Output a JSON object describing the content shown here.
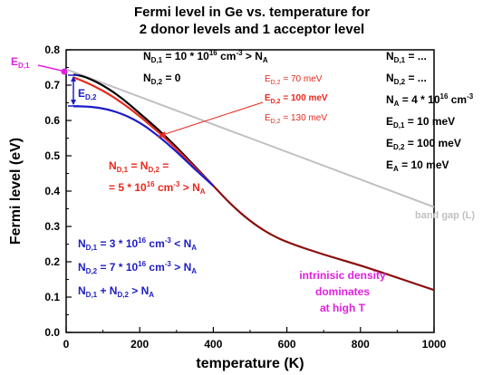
{
  "chart_data": {
    "type": "line",
    "title_line1": "Fermi level in Ge vs. temperature for",
    "title_line2": "2 donor levels and 1 acceptor level",
    "xlabel": "temperature (K)",
    "ylabel": "Fermi level (eV)",
    "xlim": [
      0,
      1000
    ],
    "ylim": [
      0.0,
      0.8
    ],
    "x_ticks": [
      0,
      200,
      400,
      600,
      800,
      1000
    ],
    "y_ticks": [
      0.0,
      0.1,
      0.2,
      0.3,
      0.4,
      0.5,
      0.6,
      0.7,
      0.8
    ],
    "grid": false,
    "colors": {
      "black": "#000000",
      "red": "#e8281c",
      "blue": "#1c1cc8",
      "gray": "#c0c0c0",
      "magenta": "#e020e0",
      "darkred": "#8a0f0f"
    },
    "series": [
      {
        "x": [
          0,
          1000
        ],
        "y": [
          0.745,
          0.355
        ],
        "color": "gray"
      },
      {
        "x": [
          20,
          50,
          100,
          150,
          200,
          250,
          300,
          350,
          400
        ],
        "y": [
          0.73,
          0.725,
          0.7,
          0.665,
          0.62,
          0.575,
          0.525,
          0.47,
          0.415
        ],
        "color": "black"
      },
      {
        "x": [
          20,
          50,
          100,
          150,
          200,
          250,
          300,
          350,
          400
        ],
        "y": [
          0.722,
          0.71,
          0.685,
          0.652,
          0.612,
          0.568,
          0.52,
          0.467,
          0.415
        ],
        "color": "red"
      },
      {
        "x": [
          20,
          50,
          100,
          150,
          200,
          250,
          300,
          350,
          400
        ],
        "y": [
          0.64,
          0.64,
          0.635,
          0.62,
          0.595,
          0.557,
          0.512,
          0.462,
          0.415
        ],
        "color": "blue"
      },
      {
        "x": [
          400,
          450,
          500,
          550,
          600,
          700,
          800,
          900,
          1000
        ],
        "y": [
          0.415,
          0.36,
          0.315,
          0.28,
          0.255,
          0.22,
          0.19,
          0.155,
          0.12
        ],
        "color": "darkred"
      }
    ],
    "texts": {
      "top_nd1": "N",
      "top_nd1_sub": "D,1",
      "top_nd1_val": " = 10 * 10",
      "top_nd1_exp": "16",
      "top_nd1_tail": " cm",
      "top_nd1_exp2": "-3",
      "top_nd1_cmp": " > N",
      "top_nd1_sub2": "A",
      "top_nd2": "N",
      "top_nd2_sub": "D,2",
      "top_nd2_val": " = 0",
      "ed_lbl": "E",
      "ed_sub": "D,1",
      "ed2_lbl": "E",
      "ed2_sub": "D,2",
      "legend_e": "E",
      "legend_sub": "D,2",
      "legend_v1": " =   70 meV",
      "legend_v2": " = 100 meV",
      "legend_v3": " = 130 meV",
      "red_l1a": "N",
      "red_l1_s1": "D,1",
      "red_l1b": " = N",
      "red_l1_s2": "D,2",
      "red_l1c": " =",
      "red_l2a": "= 5 * 10",
      "red_l2_e": "16",
      "red_l2b": " cm",
      "red_l2_e2": "-3",
      "red_l2c": " > N",
      "red_l2_s": "A",
      "blue_l1a": "N",
      "blue_l1_s": "D,1",
      "blue_l1b": " = 3 * 10",
      "blue_l1_e": "16",
      "blue_l1c": " cm",
      "blue_l1_e2": "-3",
      "blue_l1d": " < N",
      "blue_l1_s2": "A",
      "blue_l2a": "N",
      "blue_l2_s": "D,2",
      "blue_l2b": " = 7 * 10",
      "blue_l2_e": "16",
      "blue_l2c": " cm",
      "blue_l2_e2": "-3",
      "blue_l2d": " > N",
      "blue_l2_s2": "A",
      "blue_l3a": "N",
      "blue_l3_s": "D,1",
      "blue_l3b": " + N",
      "blue_l3_s2": "D,2",
      "blue_l3c": " > N",
      "blue_l3_s3": "A",
      "right_1a": "N",
      "right_1s": "D,1",
      "right_1b": " = ...",
      "right_2a": "N",
      "right_2s": "D,2",
      "right_2b": " = ...",
      "right_3a": "N",
      "right_3s": "A",
      "right_3b": "  = 4 * 10",
      "right_3e": "16",
      "right_3c": " cm",
      "right_3e2": "-3",
      "right_4a": "E",
      "right_4s": "D,1",
      "right_4b": " =   10 meV",
      "right_5a": "E",
      "right_5s": "D,2",
      "right_5b": " = 100 meV",
      "right_6a": "E",
      "right_6s": "A",
      "right_6b": "   =   10 meV",
      "band_gap": "band gap (L)",
      "intr1": "intrinisic density",
      "intr2": "dominates",
      "intr3": "at high T"
    }
  }
}
